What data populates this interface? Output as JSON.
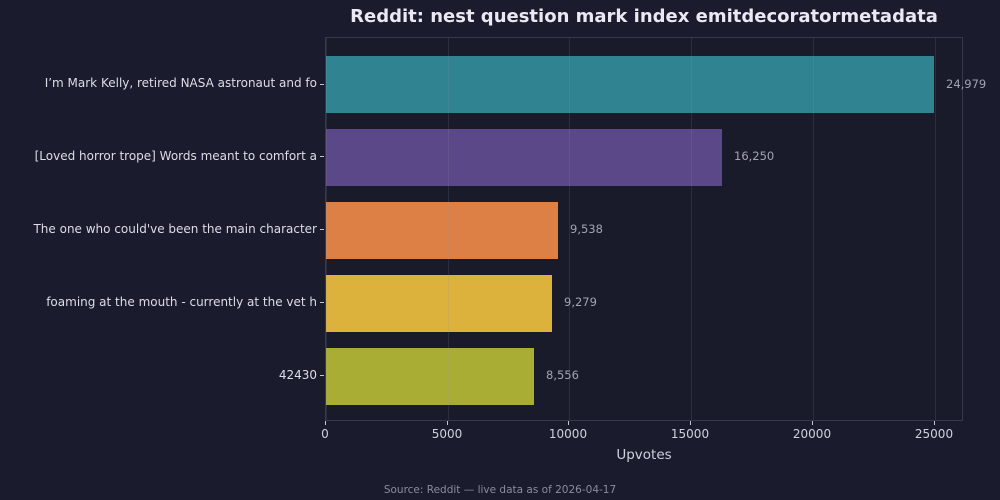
{
  "title": "Reddit: nest question mark index emitdecoratormetadata",
  "footer": "Source: Reddit — live data as of 2026-04-17",
  "chart_data": {
    "type": "bar",
    "orientation": "horizontal",
    "title": "Reddit: nest question mark index emitdecoratormetadata",
    "xlabel": "Upvotes",
    "ylabel": "",
    "categories": [
      "I’m Mark Kelly, retired NASA astronaut and fo",
      "[Loved horror trope] Words meant to comfort a",
      "The one who could've been the main character",
      "foaming at the mouth - currently at the vet h",
      "42430"
    ],
    "values": [
      24979,
      16250,
      9538,
      9279,
      8556
    ],
    "value_labels": [
      "24,979",
      "16,250",
      "9,538",
      "9,279",
      "8,556"
    ],
    "bar_colors": [
      "#308390",
      "#5a4888",
      "#dc8046",
      "#dcb13c",
      "#a9ad33"
    ],
    "x_ticks": [
      0,
      5000,
      10000,
      15000,
      20000,
      25000
    ],
    "x_tick_labels": [
      "0",
      "5000",
      "10000",
      "15000",
      "20000",
      "25000"
    ],
    "xlim": [
      0,
      26218
    ],
    "grid": "vertical-on-top",
    "legend": "none",
    "colors": {
      "figure_background": "#1a1b2c",
      "plot_background": "#191a2a",
      "spine": "#363850",
      "title_text": "#e8e9f2",
      "tick_text": "#d0d1de",
      "category_text": "#dcdde8",
      "value_text": "#a2a3b4",
      "footer_text": "#8b8c9d"
    }
  }
}
